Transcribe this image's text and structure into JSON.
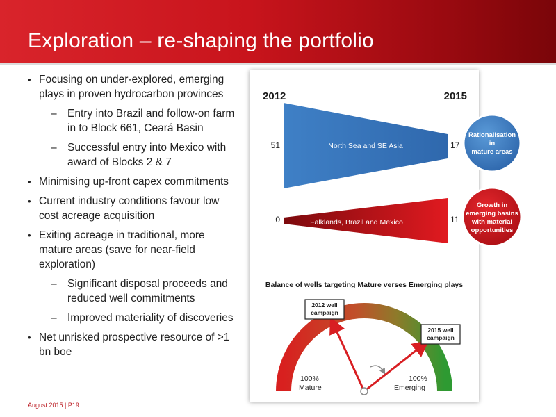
{
  "title": "Exploration – re-shaping the portfolio",
  "bullets": {
    "b1": "Focusing on under-explored, emerging plays in proven hydrocarbon provinces",
    "b1_sub1": "Entry into Brazil and follow-on farm in to Block 661, Ceará Basin",
    "b1_sub2": "Successful entry into Mexico with award of Blocks 2 & 7",
    "b2": "Minimising up-front capex commitments",
    "b3": "Current industry conditions favour low cost acreage acquisition",
    "b4": "Exiting acreage in traditional, more mature areas (save for near-field exploration)",
    "b4_sub1": "Significant disposal proceeds and reduced well commitments",
    "b4_sub2": "Improved materiality of discoveries",
    "b5": "Net unrisked prospective resource of >1 bn boe"
  },
  "footer": "August 2015 | P19",
  "wedge": {
    "year_start": "2012",
    "year_end": "2015",
    "mature": {
      "label": "North Sea and SE Asia",
      "start": "51",
      "end": "17",
      "color": "#3d7ec3"
    },
    "emerging": {
      "label": "Falklands, Brazil and Mexico",
      "start": "0",
      "end": "11",
      "color": "#c8141b"
    }
  },
  "badges": {
    "mature": [
      "Rationalisation",
      "in",
      "mature areas"
    ],
    "emerging": [
      "Growth in",
      "emerging basins",
      "with material",
      "opportunities"
    ]
  },
  "gauge": {
    "title": "Balance of wells targeting Mature verses Emerging plays",
    "callout_2012": [
      "2012 well",
      "campaign"
    ],
    "callout_2015": [
      "2015 well",
      "campaign"
    ],
    "left_pct": "100%",
    "left_label": "Mature",
    "right_pct": "100%",
    "right_label": "Emerging"
  }
}
